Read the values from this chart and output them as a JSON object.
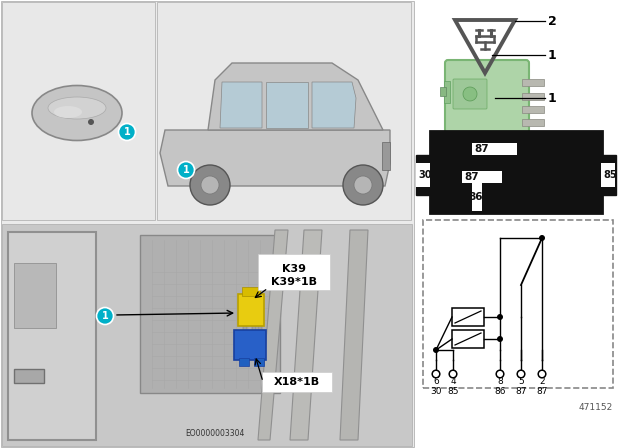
{
  "bg_color": "#ffffff",
  "label1_color": "#00b0c8",
  "relay_body_color": "#aed4a8",
  "K39_label": "K39",
  "K39_1B_label": "K39*1B",
  "X18_1B_label": "X18*1B",
  "watermark": "EO0000003304",
  "doc_number": "471152",
  "pin_top_labels": [
    "6",
    "4",
    "8",
    "5",
    "2"
  ],
  "pin_bot_labels": [
    "30",
    "85",
    "86",
    "87",
    "87"
  ]
}
